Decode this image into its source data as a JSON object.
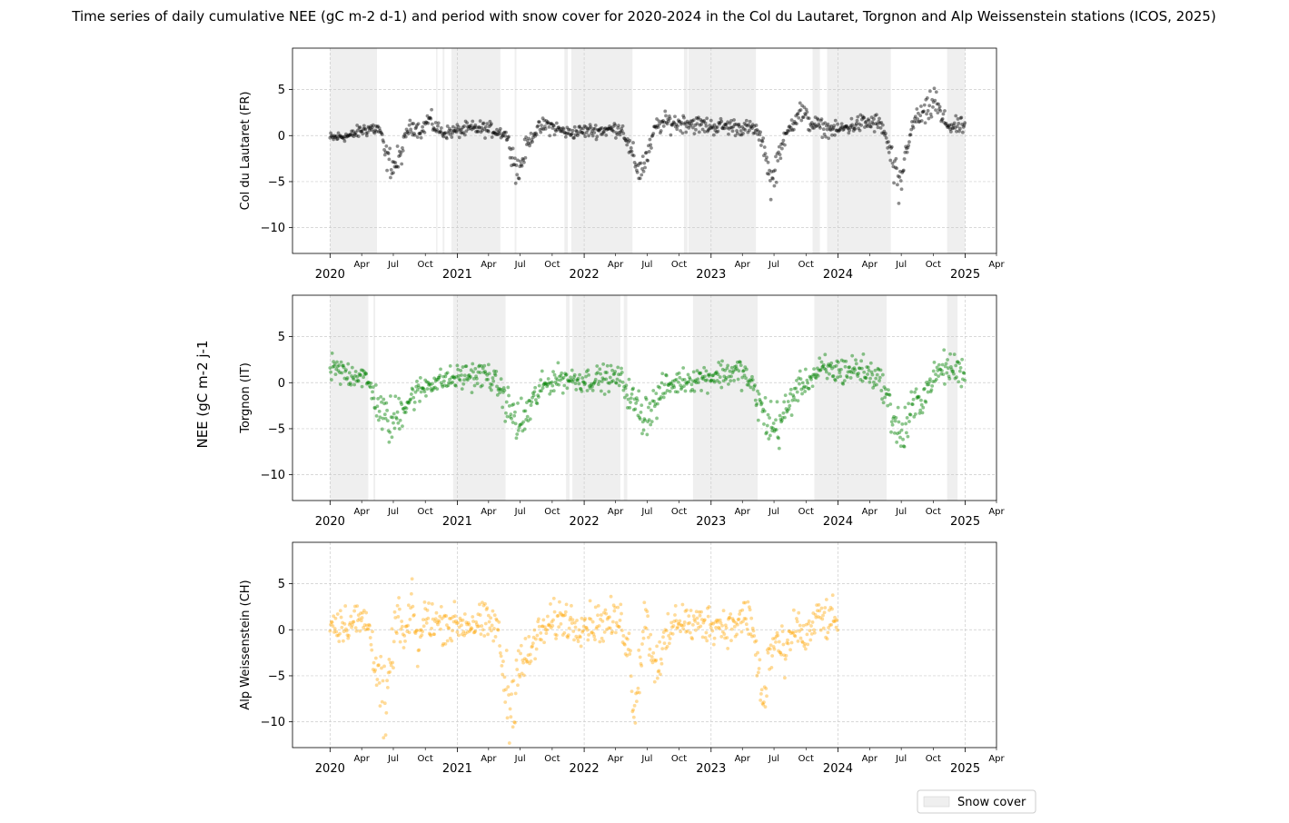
{
  "chart_data": {
    "type": "scatter",
    "title": "Time series of daily cumulative NEE (gC m-2 d-1) and period with snow cover for 2020-2024 in the Col du Lautaret, Torgnon and Alp Weissenstein stations (ICOS, 2025)",
    "shared_ylabel": "NEE (gC m-2 j-1",
    "legend": {
      "label": "Snow cover",
      "placement": "bottom-right",
      "color": "#efefef"
    },
    "ylim": [
      -12.8,
      9.5
    ],
    "yticks": [
      5,
      0,
      -5,
      -10
    ],
    "ytick_labels": [
      "5",
      "0",
      "−5",
      "−10"
    ],
    "xlim": [
      "2019-09-15",
      "2025-04-01"
    ],
    "year_ticks": [
      "2020",
      "2021",
      "2022",
      "2023",
      "2024",
      "2025"
    ],
    "month_tick_labels": [
      "Apr",
      "Jul",
      "Oct"
    ],
    "trailing_month_label": "Apr",
    "grid": true,
    "panels": [
      {
        "ylabel": "Col du Lautaret (FR)",
        "color": "#000000",
        "date_range": [
          "2020-01-01",
          "2024-12-31"
        ],
        "anchors": [
          [
            "2020-01-01",
            -0.3
          ],
          [
            "2020-02-01",
            -0.1
          ],
          [
            "2020-03-01",
            0
          ],
          [
            "2020-04-01",
            0.6
          ],
          [
            "2020-05-01",
            0.8
          ],
          [
            "2020-05-25",
            0.6
          ],
          [
            "2020-06-08",
            -2.2
          ],
          [
            "2020-07-01",
            -3.3
          ],
          [
            "2020-07-20",
            -2.6
          ],
          [
            "2020-08-10",
            0.6
          ],
          [
            "2020-09-01",
            1.1
          ],
          [
            "2020-09-20",
            0.4
          ],
          [
            "2020-10-10",
            1.8
          ],
          [
            "2020-10-28",
            1
          ],
          [
            "2020-11-20",
            0.3
          ],
          [
            "2021-01-01",
            0.5
          ],
          [
            "2021-03-01",
            0.8
          ],
          [
            "2021-04-15",
            0.6
          ],
          [
            "2021-05-20",
            0.2
          ],
          [
            "2021-06-05",
            -1.5
          ],
          [
            "2021-06-25",
            -4.2
          ],
          [
            "2021-07-20",
            -1
          ],
          [
            "2021-08-15",
            0.5
          ],
          [
            "2021-09-15",
            1.2
          ],
          [
            "2021-10-10",
            0.8
          ],
          [
            "2021-11-15",
            0.3
          ],
          [
            "2022-01-01",
            0.5
          ],
          [
            "2022-03-01",
            0.6
          ],
          [
            "2022-04-20",
            0.8
          ],
          [
            "2022-05-20",
            -2.3
          ],
          [
            "2022-06-10",
            -3.8
          ],
          [
            "2022-07-05",
            -2
          ],
          [
            "2022-07-25",
            1
          ],
          [
            "2022-09-01",
            1.5
          ],
          [
            "2022-10-01",
            1.3
          ],
          [
            "2022-10-25",
            1.5
          ],
          [
            "2022-11-20",
            1.2
          ],
          [
            "2023-01-01",
            1
          ],
          [
            "2023-03-01",
            1
          ],
          [
            "2023-04-15",
            0.8
          ],
          [
            "2023-05-10",
            0.7
          ],
          [
            "2023-06-05",
            -1.5
          ],
          [
            "2023-06-25",
            -5.5
          ],
          [
            "2023-07-15",
            -1.8
          ],
          [
            "2023-08-15",
            0.8
          ],
          [
            "2023-09-10",
            2.8
          ],
          [
            "2023-10-10",
            1.5
          ],
          [
            "2023-11-20",
            0.8
          ],
          [
            "2024-01-01",
            0.6
          ],
          [
            "2024-03-01",
            1.3
          ],
          [
            "2024-04-20",
            1.4
          ],
          [
            "2024-05-10",
            0.8
          ],
          [
            "2024-06-05",
            -2.8
          ],
          [
            "2024-06-25",
            -6.5
          ],
          [
            "2024-07-15",
            -1.5
          ],
          [
            "2024-08-10",
            1.8
          ],
          [
            "2024-09-15",
            2.5
          ],
          [
            "2024-10-05",
            4
          ],
          [
            "2024-10-25",
            1.8
          ],
          [
            "2024-11-20",
            1
          ],
          [
            "2024-12-31",
            1
          ]
        ],
        "snow_cover": [
          [
            "2020-01-01",
            "2020-05-15"
          ],
          [
            "2020-11-01",
            "2020-11-05"
          ],
          [
            "2020-11-20",
            "2020-11-25"
          ],
          [
            "2020-12-15",
            "2021-05-05"
          ],
          [
            "2021-06-15",
            "2021-06-20"
          ],
          [
            "2021-11-05",
            "2021-11-15"
          ],
          [
            "2021-11-25",
            "2022-05-20"
          ],
          [
            "2022-10-15",
            "2022-10-25"
          ],
          [
            "2022-10-28",
            "2023-05-10"
          ],
          [
            "2023-10-20",
            "2023-11-10"
          ],
          [
            "2023-12-01",
            "2024-06-01"
          ],
          [
            "2024-11-10",
            "2025-01-01"
          ]
        ]
      },
      {
        "ylabel": "Torgnon (IT)",
        "color": "#008000",
        "date_range": [
          "2020-01-01",
          "2024-12-31"
        ],
        "anchors": [
          [
            "2020-01-01",
            1.4
          ],
          [
            "2020-02-15",
            1
          ],
          [
            "2020-04-01",
            0.9
          ],
          [
            "2020-05-01",
            -0.8
          ],
          [
            "2020-06-01",
            -3.8
          ],
          [
            "2020-07-01",
            -4.3
          ],
          [
            "2020-08-01",
            -2.3
          ],
          [
            "2020-09-01",
            -1.3
          ],
          [
            "2020-10-15",
            0
          ],
          [
            "2020-12-01",
            0.3
          ],
          [
            "2021-02-01",
            0.8
          ],
          [
            "2021-04-01",
            0.8
          ],
          [
            "2021-05-01",
            -0.5
          ],
          [
            "2021-06-01",
            -3
          ],
          [
            "2021-07-01",
            -4.8
          ],
          [
            "2021-08-01",
            -2.5
          ],
          [
            "2021-09-01",
            -0.5
          ],
          [
            "2021-10-15",
            0.5
          ],
          [
            "2022-01-01",
            0.3
          ],
          [
            "2022-03-01",
            0.5
          ],
          [
            "2022-04-15",
            0.5
          ],
          [
            "2022-05-20",
            -2
          ],
          [
            "2022-06-20",
            -3.5
          ],
          [
            "2022-07-20",
            -2.5
          ],
          [
            "2022-08-20",
            -0.5
          ],
          [
            "2022-10-15",
            0.3
          ],
          [
            "2022-12-01",
            0.5
          ],
          [
            "2023-02-01",
            1
          ],
          [
            "2023-04-01",
            1.2
          ],
          [
            "2023-05-01",
            -0.5
          ],
          [
            "2023-06-01",
            -3.5
          ],
          [
            "2023-07-01",
            -5
          ],
          [
            "2023-08-01",
            -3.5
          ],
          [
            "2023-09-01",
            -0.8
          ],
          [
            "2023-10-15",
            0.5
          ],
          [
            "2023-11-15",
            1.3
          ],
          [
            "2024-01-01",
            1.3
          ],
          [
            "2024-03-01",
            1.5
          ],
          [
            "2024-05-01",
            0.5
          ],
          [
            "2024-06-01",
            -3
          ],
          [
            "2024-07-01",
            -6
          ],
          [
            "2024-08-01",
            -3
          ],
          [
            "2024-09-01",
            -1.5
          ],
          [
            "2024-10-01",
            0.5
          ],
          [
            "2024-11-01",
            1.6
          ],
          [
            "2024-12-01",
            1.5
          ],
          [
            "2024-12-31",
            1.2
          ]
        ],
        "snow_cover": [
          [
            "2020-01-01",
            "2020-04-20"
          ],
          [
            "2020-05-05",
            "2020-05-10"
          ],
          [
            "2020-12-20",
            "2021-05-20"
          ],
          [
            "2021-11-10",
            "2021-11-20"
          ],
          [
            "2021-11-28",
            "2022-04-15"
          ],
          [
            "2022-04-25",
            "2022-05-05"
          ],
          [
            "2022-11-10",
            "2023-05-15"
          ],
          [
            "2023-10-25",
            "2024-05-20"
          ],
          [
            "2024-11-10",
            "2024-12-10"
          ]
        ]
      },
      {
        "ylabel": "Alp Weissenstein (CH)",
        "color": "#FFA500",
        "date_range": [
          "2020-01-01",
          "2023-12-31"
        ],
        "anchors": [
          [
            "2020-01-01",
            0.7
          ],
          [
            "2020-03-01",
            0.8
          ],
          [
            "2020-04-15",
            1
          ],
          [
            "2020-05-05",
            -2
          ],
          [
            "2020-05-25",
            -6
          ],
          [
            "2020-06-10",
            -10
          ],
          [
            "2020-06-25",
            -3
          ],
          [
            "2020-07-15",
            2
          ],
          [
            "2020-08-01",
            -1.5
          ],
          [
            "2020-08-25",
            2.5
          ],
          [
            "2020-09-10",
            -2
          ],
          [
            "2020-10-01",
            1.5
          ],
          [
            "2020-11-01",
            0.8
          ],
          [
            "2021-01-01",
            0.6
          ],
          [
            "2021-03-01",
            0.7
          ],
          [
            "2021-04-25",
            0.5
          ],
          [
            "2021-05-15",
            -5
          ],
          [
            "2021-06-05",
            -9
          ],
          [
            "2021-06-25",
            -3
          ],
          [
            "2021-07-15",
            -4
          ],
          [
            "2021-08-15",
            -1
          ],
          [
            "2021-09-10",
            0
          ],
          [
            "2021-10-01",
            0.8
          ],
          [
            "2021-11-05",
            1.3
          ],
          [
            "2021-12-01",
            0.7
          ],
          [
            "2022-03-01",
            0.8
          ],
          [
            "2022-04-15",
            1
          ],
          [
            "2022-05-10",
            -2
          ],
          [
            "2022-05-25",
            -8
          ],
          [
            "2022-06-10",
            -4
          ],
          [
            "2022-06-25",
            2
          ],
          [
            "2022-07-20",
            -3.5
          ],
          [
            "2022-08-20",
            -2
          ],
          [
            "2022-09-10",
            0
          ],
          [
            "2022-10-01",
            1.5
          ],
          [
            "2022-11-01",
            0.5
          ],
          [
            "2023-01-01",
            0.8
          ],
          [
            "2023-03-01",
            0.3
          ],
          [
            "2023-04-20",
            1.5
          ],
          [
            "2023-05-10",
            -2
          ],
          [
            "2023-06-01",
            -9
          ],
          [
            "2023-06-15",
            -3
          ],
          [
            "2023-07-10",
            -1
          ],
          [
            "2023-08-01",
            -3.5
          ],
          [
            "2023-09-01",
            0.5
          ],
          [
            "2023-10-01",
            -1
          ],
          [
            "2023-11-01",
            1.2
          ],
          [
            "2023-12-15",
            1
          ],
          [
            "2023-12-31",
            0.5
          ]
        ],
        "snow_cover": []
      }
    ]
  }
}
